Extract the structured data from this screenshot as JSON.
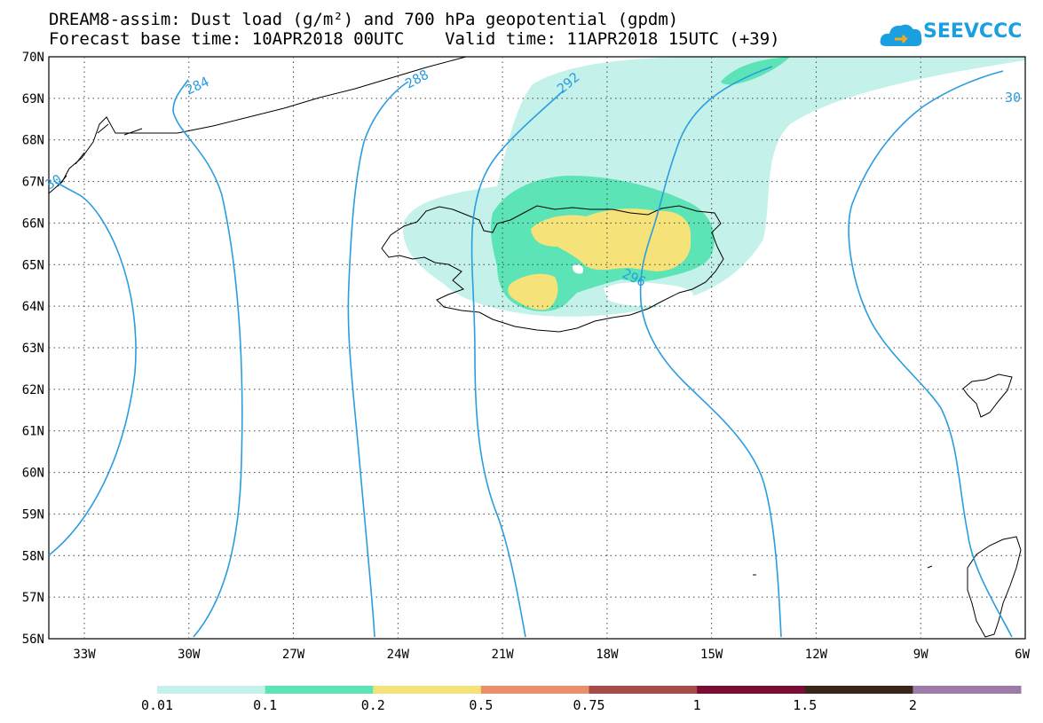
{
  "header": {
    "title_line1": "DREAM8-assim: Dust load (g/m²) and 700 hPa geopotential (gpdm)",
    "title_line2": "Forecast base time: 10APR2018 00UTC    Valid time: 11APR2018 15UTC (+39)",
    "logo_text": "SEEVCCC",
    "logo_icon": "cloud-logo-icon"
  },
  "map": {
    "lat_labels": [
      "70N",
      "69N",
      "68N",
      "67N",
      "66N",
      "65N",
      "64N",
      "63N",
      "62N",
      "61N",
      "60N",
      "59N",
      "58N",
      "57N",
      "56N"
    ],
    "lon_labels": [
      "33W",
      "30W",
      "27W",
      "24W",
      "21W",
      "18W",
      "15W",
      "12W",
      "9W",
      "6W"
    ],
    "contour_labels": [
      "284",
      "288",
      "292",
      "296",
      "30",
      "30"
    ],
    "contour_color": "#2a9de0"
  },
  "legend": {
    "bins": [
      {
        "color": "#c4f2ea"
      },
      {
        "color": "#5ce4b6"
      },
      {
        "color": "#f5e37a"
      },
      {
        "color": "#e9906a"
      },
      {
        "color": "#a84b46"
      },
      {
        "color": "#7a0d33"
      },
      {
        "color": "#3a2619"
      },
      {
        "color": "#9d7aa8"
      }
    ],
    "labels": [
      "0.01",
      "0.1",
      "0.2",
      "0.5",
      "0.75",
      "1",
      "1.5",
      "2"
    ]
  }
}
